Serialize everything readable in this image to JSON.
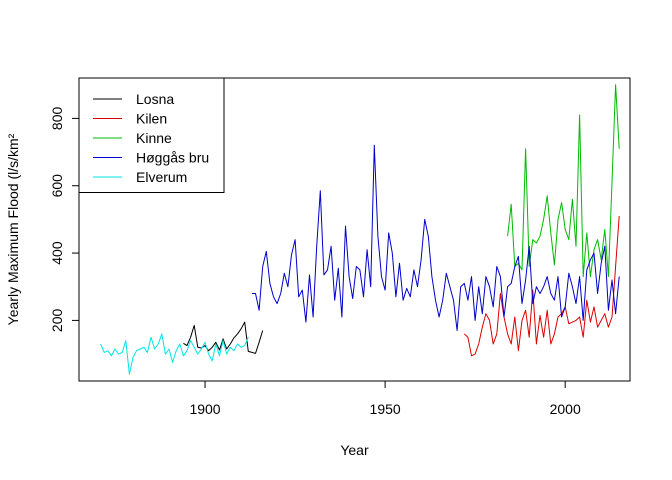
{
  "chart_data": {
    "type": "line",
    "title": "",
    "xlabel": "Year",
    "ylabel": "Yearly Maximum Flood (l/s/km²",
    "xlim": [
      1865,
      2018
    ],
    "ylim": [
      20,
      920
    ],
    "xticks": [
      1900,
      1950,
      2000
    ],
    "yticks": [
      200,
      400,
      600,
      800
    ],
    "grid": false,
    "legend_position": "top-left",
    "series": [
      {
        "name": "Losna",
        "color": "#000000",
        "x": [
          1894,
          1895,
          1896,
          1897,
          1898,
          1899,
          1900,
          1901,
          1902,
          1903,
          1904,
          1905,
          1906,
          1907,
          1908,
          1909,
          1910,
          1911,
          1912,
          1913,
          1914,
          1915,
          1916
        ],
        "y": [
          132,
          125,
          150,
          185,
          120,
          118,
          125,
          110,
          120,
          135,
          112,
          145,
          115,
          130,
          148,
          160,
          175,
          195,
          108,
          105,
          102,
          135,
          170
        ]
      },
      {
        "name": "Kilen",
        "color": "#dd0000",
        "x": [
          1972,
          1973,
          1974,
          1975,
          1976,
          1977,
          1978,
          1979,
          1980,
          1981,
          1982,
          1983,
          1984,
          1985,
          1986,
          1987,
          1988,
          1989,
          1990,
          1991,
          1992,
          1993,
          1994,
          1995,
          1996,
          1997,
          1998,
          1999,
          2000,
          2001,
          2002,
          2003,
          2004,
          2005,
          2006,
          2007,
          2008,
          2009,
          2010,
          2011,
          2012,
          2013,
          2014,
          2015
        ],
        "y": [
          160,
          150,
          95,
          100,
          130,
          180,
          220,
          200,
          130,
          160,
          280,
          210,
          160,
          130,
          210,
          110,
          200,
          230,
          150,
          290,
          130,
          215,
          150,
          230,
          130,
          160,
          210,
          220,
          240,
          190,
          195,
          200,
          210,
          150,
          260,
          195,
          240,
          180,
          200,
          220,
          180,
          210,
          360,
          510
        ]
      },
      {
        "name": "Kinne",
        "color": "#00bb00",
        "x": [
          1984,
          1985,
          1986,
          1987,
          1988,
          1989,
          1990,
          1991,
          1992,
          1993,
          1994,
          1995,
          1996,
          1997,
          1998,
          1999,
          2000,
          2001,
          2002,
          2003,
          2004,
          2005,
          2006,
          2007,
          2008,
          2009,
          2010,
          2011,
          2012,
          2013,
          2014,
          2015
        ],
        "y": [
          450,
          545,
          360,
          370,
          350,
          710,
          360,
          440,
          430,
          450,
          500,
          570,
          460,
          365,
          500,
          550,
          470,
          440,
          560,
          420,
          810,
          330,
          460,
          330,
          410,
          440,
          380,
          470,
          330,
          610,
          900,
          710
        ]
      },
      {
        "name": "Høggås bru",
        "color": "#0000cc",
        "x": [
          1913,
          1914,
          1915,
          1916,
          1917,
          1918,
          1919,
          1920,
          1921,
          1922,
          1923,
          1924,
          1925,
          1926,
          1927,
          1928,
          1929,
          1930,
          1931,
          1932,
          1933,
          1934,
          1935,
          1936,
          1937,
          1938,
          1939,
          1940,
          1941,
          1942,
          1943,
          1944,
          1945,
          1946,
          1947,
          1948,
          1949,
          1950,
          1951,
          1952,
          1953,
          1954,
          1955,
          1956,
          1957,
          1958,
          1959,
          1960,
          1961,
          1962,
          1963,
          1964,
          1965,
          1966,
          1967,
          1968,
          1969,
          1970,
          1971,
          1972,
          1973,
          1974,
          1975,
          1976,
          1977,
          1978,
          1979,
          1980,
          1981,
          1982,
          1983,
          1984,
          1985,
          1986,
          1987,
          1988,
          1989,
          1990,
          1991,
          1992,
          1993,
          1994,
          1995,
          1996,
          1997,
          1998,
          1999,
          2000,
          2001,
          2002,
          2003,
          2004,
          2005,
          2006,
          2007,
          2008,
          2009,
          2010,
          2011,
          2012,
          2013,
          2014,
          2015
        ],
        "y": [
          280,
          280,
          230,
          360,
          405,
          310,
          270,
          250,
          280,
          340,
          300,
          395,
          440,
          270,
          290,
          195,
          335,
          210,
          420,
          585,
          335,
          350,
          420,
          260,
          355,
          210,
          480,
          330,
          265,
          360,
          350,
          270,
          410,
          300,
          720,
          450,
          330,
          290,
          460,
          400,
          270,
          370,
          260,
          295,
          270,
          350,
          300,
          380,
          500,
          450,
          330,
          260,
          210,
          260,
          340,
          300,
          260,
          170,
          300,
          310,
          260,
          330,
          200,
          300,
          220,
          330,
          300,
          240,
          360,
          330,
          210,
          300,
          310,
          360,
          390,
          250,
          320,
          420,
          250,
          300,
          280,
          300,
          330,
          280,
          260,
          330,
          210,
          240,
          340,
          300,
          250,
          330,
          200,
          350,
          380,
          400,
          280,
          370,
          420,
          230,
          320,
          220,
          330
        ]
      },
      {
        "name": "Elverum",
        "color": "#00e5e5",
        "x": [
          1871,
          1872,
          1873,
          1874,
          1875,
          1876,
          1877,
          1878,
          1879,
          1880,
          1881,
          1882,
          1883,
          1884,
          1885,
          1886,
          1887,
          1888,
          1889,
          1890,
          1891,
          1892,
          1893,
          1894,
          1895,
          1896,
          1897,
          1898,
          1899,
          1900,
          1901,
          1902,
          1903,
          1904,
          1905,
          1906,
          1907,
          1908,
          1909,
          1910,
          1911,
          1912
        ],
        "y": [
          130,
          105,
          110,
          95,
          115,
          100,
          105,
          140,
          40,
          90,
          110,
          115,
          120,
          105,
          150,
          115,
          130,
          160,
          100,
          115,
          75,
          110,
          130,
          95,
          110,
          140,
          120,
          100,
          115,
          135,
          100,
          80,
          130,
          95,
          140,
          100,
          120,
          110,
          130,
          120,
          125,
          150
        ]
      }
    ]
  }
}
